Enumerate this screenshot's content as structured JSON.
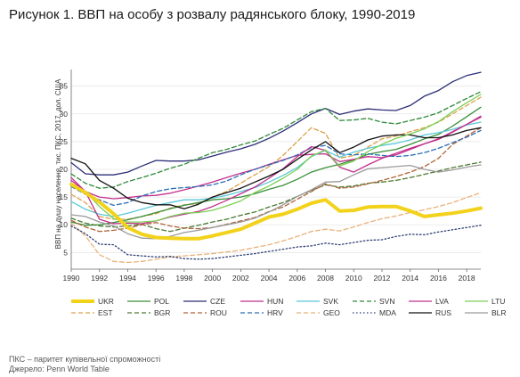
{
  "title": "Рисунок 1. ВВП на особу з розвалу радянського блоку, 1990-2019",
  "notes": [
    "ПКС – паритет купівельної спроможності",
    "Джерело: Penn World Table"
  ],
  "chart_data": {
    "type": "line",
    "title": "Рисунок 1. ВВП на особу з розвалу радянського блоку, 1990-2019",
    "xlabel": "",
    "ylabel": "ВВП на душу населення, тис. ПКС, 2017, дол. США",
    "xlim": [
      1990,
      2019
    ],
    "ylim": [
      2,
      38
    ],
    "xticks": [
      1990,
      1992,
      1994,
      1996,
      1998,
      2000,
      2002,
      2004,
      2006,
      2008,
      2010,
      2012,
      2014,
      2016,
      2018
    ],
    "yticks": [
      5,
      10,
      15,
      20,
      25,
      30,
      35
    ],
    "grid": "horizontal",
    "legend_position": "bottom",
    "x": [
      1990,
      1991,
      1992,
      1993,
      1994,
      1995,
      1996,
      1997,
      1998,
      1999,
      2000,
      2001,
      2002,
      2003,
      2004,
      2005,
      2006,
      2007,
      2008,
      2009,
      2010,
      2011,
      2012,
      2013,
      2014,
      2015,
      2016,
      2017,
      2018,
      2019
    ],
    "series": [
      {
        "name": "UKR",
        "color": "#f2d21b",
        "dash": "solid",
        "width": 4,
        "values": [
          17.3,
          15.8,
          14.1,
          12.0,
          9.5,
          8.3,
          7.7,
          7.6,
          7.5,
          7.5,
          8.0,
          8.6,
          9.2,
          10.3,
          11.4,
          11.9,
          12.8,
          13.9,
          14.5,
          12.5,
          12.6,
          13.2,
          13.3,
          13.3,
          12.5,
          11.5,
          11.8,
          12.1,
          12.5,
          13.0
        ]
      },
      {
        "name": "EST",
        "color": "#d9a24a",
        "dash": "dash",
        "width": 1.3,
        "values": [
          15.5,
          14.0,
          11.5,
          11.0,
          11.0,
          11.5,
          12.0,
          13.0,
          13.6,
          13.8,
          15.0,
          16.0,
          17.5,
          19.0,
          20.5,
          22.5,
          25.0,
          27.5,
          26.5,
          22.0,
          22.5,
          24.0,
          25.5,
          26.0,
          26.8,
          27.5,
          28.5,
          30.0,
          31.5,
          33.0
        ]
      },
      {
        "name": "POL",
        "color": "#3a8f3a",
        "dash": "solid",
        "width": 1.3,
        "values": [
          10.5,
          9.9,
          10.0,
          10.4,
          10.9,
          11.5,
          12.2,
          12.9,
          13.5,
          14.0,
          14.5,
          14.7,
          15.0,
          15.6,
          16.4,
          17.1,
          18.2,
          19.5,
          20.3,
          20.9,
          21.7,
          22.7,
          23.2,
          23.6,
          24.5,
          25.5,
          26.3,
          27.8,
          29.5,
          31.2
        ]
      },
      {
        "name": "BGR",
        "color": "#4c7a32",
        "dash": "dash",
        "width": 1.3,
        "values": [
          11.2,
          10.3,
          9.8,
          9.6,
          9.8,
          10.1,
          9.3,
          8.8,
          9.4,
          9.9,
          10.5,
          11.0,
          11.7,
          12.3,
          13.2,
          14.0,
          15.1,
          16.2,
          17.2,
          16.8,
          17.0,
          17.5,
          17.7,
          18.0,
          18.5,
          19.1,
          19.7,
          20.3,
          20.8,
          21.3
        ]
      },
      {
        "name": "CZE",
        "color": "#2c2e78",
        "dash": "solid",
        "width": 1.3,
        "values": [
          21.2,
          19.2,
          19.0,
          19.0,
          19.5,
          20.6,
          21.6,
          21.5,
          21.5,
          21.7,
          22.4,
          23.1,
          23.7,
          24.5,
          25.6,
          26.9,
          28.4,
          30.0,
          31.0,
          29.9,
          30.5,
          30.9,
          30.7,
          30.6,
          31.5,
          33.2,
          34.2,
          35.8,
          36.9,
          37.5
        ]
      },
      {
        "name": "ROU",
        "color": "#b0643a",
        "dash": "dash",
        "width": 1.3,
        "values": [
          10.8,
          9.6,
          8.8,
          9.0,
          9.4,
          10.0,
          10.4,
          9.8,
          9.4,
          9.3,
          9.5,
          10.1,
          10.7,
          11.3,
          12.4,
          13.2,
          14.6,
          16.0,
          17.4,
          16.6,
          16.8,
          17.4,
          18.0,
          18.7,
          19.5,
          20.5,
          22.0,
          24.5,
          26.0,
          27.5
        ]
      },
      {
        "name": "HUN",
        "color": "#c2308e",
        "dash": "solid",
        "width": 1.3,
        "values": [
          18.0,
          16.0,
          15.0,
          14.7,
          14.9,
          15.2,
          15.3,
          15.7,
          16.3,
          17.0,
          17.7,
          18.5,
          19.3,
          20.0,
          20.9,
          21.7,
          22.5,
          22.7,
          22.8,
          21.4,
          21.8,
          22.3,
          22.1,
          22.6,
          23.6,
          24.6,
          25.4,
          26.7,
          28.1,
          29.6
        ]
      },
      {
        "name": "HRV",
        "color": "#2a6fb3",
        "dash": "dash",
        "width": 1.3,
        "values": [
          16.9,
          15.5,
          14.5,
          13.5,
          14.0,
          15.2,
          16.0,
          16.5,
          16.7,
          16.9,
          17.2,
          17.9,
          19.0,
          20.0,
          20.8,
          21.6,
          22.6,
          23.9,
          24.3,
          22.8,
          22.6,
          22.8,
          22.5,
          22.3,
          22.5,
          23.0,
          23.8,
          24.8,
          25.8,
          27.0
        ]
      },
      {
        "name": "SVK",
        "color": "#5bc8d9",
        "dash": "solid",
        "width": 1.3,
        "values": [
          14.2,
          12.8,
          11.9,
          11.5,
          12.1,
          12.8,
          13.5,
          14.0,
          14.5,
          14.5,
          14.8,
          15.3,
          16.0,
          16.7,
          17.7,
          18.9,
          20.3,
          22.3,
          23.4,
          22.2,
          23.1,
          23.8,
          24.3,
          24.7,
          25.3,
          26.2,
          26.6,
          27.2,
          28.0,
          28.5
        ]
      },
      {
        "name": "GEO",
        "color": "#e8b27a",
        "dash": "dash",
        "width": 1.3,
        "values": [
          10.3,
          8.0,
          4.6,
          3.4,
          3.2,
          3.4,
          3.8,
          4.2,
          4.4,
          4.6,
          4.8,
          5.1,
          5.4,
          5.9,
          6.4,
          7.1,
          7.9,
          8.8,
          9.2,
          8.9,
          9.6,
          10.4,
          11.1,
          11.6,
          12.2,
          12.7,
          13.3,
          14.0,
          14.9,
          15.8
        ]
      },
      {
        "name": "SVN",
        "color": "#2f8a3a",
        "dash": "dash",
        "width": 1.3,
        "values": [
          19.2,
          17.5,
          16.6,
          16.8,
          17.8,
          18.5,
          19.3,
          20.2,
          20.9,
          22.0,
          23.0,
          23.6,
          24.4,
          25.1,
          26.3,
          27.4,
          28.9,
          30.4,
          31.0,
          28.8,
          28.9,
          29.2,
          28.5,
          28.2,
          28.8,
          29.4,
          30.2,
          31.5,
          32.8,
          34.0
        ]
      },
      {
        "name": "MDA",
        "color": "#2b3d73",
        "dash": "dot",
        "width": 1.3,
        "values": [
          9.8,
          8.4,
          6.5,
          6.4,
          4.6,
          4.4,
          4.2,
          4.3,
          3.9,
          3.8,
          3.9,
          4.2,
          4.5,
          4.8,
          5.2,
          5.6,
          6.0,
          6.2,
          6.7,
          6.4,
          6.8,
          7.2,
          7.3,
          7.9,
          8.3,
          8.2,
          8.7,
          9.1,
          9.5,
          9.9
        ]
      },
      {
        "name": "LVA",
        "color": "#c2308e",
        "dash": "solid",
        "width": 1.3,
        "values": [
          18.5,
          16.0,
          11.0,
          10.2,
          10.3,
          10.2,
          10.7,
          11.4,
          11.9,
          12.4,
          13.3,
          14.4,
          15.6,
          16.8,
          18.4,
          20.1,
          22.3,
          24.1,
          23.4,
          20.4,
          19.5,
          20.8,
          22.0,
          22.9,
          23.8,
          24.6,
          25.5,
          26.8,
          28.1,
          29.4
        ]
      },
      {
        "name": "RUS",
        "color": "#111111",
        "dash": "solid",
        "width": 1.3,
        "values": [
          22.0,
          21.0,
          18.0,
          16.6,
          14.8,
          14.0,
          13.6,
          13.6,
          12.9,
          13.7,
          15.0,
          15.8,
          16.6,
          17.7,
          18.8,
          20.0,
          21.8,
          23.5,
          25.0,
          23.0,
          24.0,
          25.3,
          26.0,
          26.2,
          26.2,
          25.7,
          25.7,
          26.2,
          27.0,
          27.5
        ]
      },
      {
        "name": "LTU",
        "color": "#7ccf54",
        "dash": "solid",
        "width": 1.3,
        "values": [
          17.0,
          16.0,
          13.3,
          11.1,
          10.5,
          10.5,
          10.7,
          11.5,
          12.1,
          12.2,
          12.6,
          13.4,
          14.3,
          15.8,
          17.0,
          18.4,
          20.0,
          22.4,
          23.5,
          20.6,
          21.5,
          23.2,
          24.5,
          25.6,
          26.4,
          27.3,
          28.6,
          30.4,
          32.0,
          33.5
        ]
      },
      {
        "name": "BLR",
        "color": "#9a9a9a",
        "dash": "solid",
        "width": 1.3,
        "values": [
          11.8,
          11.5,
          10.5,
          9.8,
          8.4,
          7.6,
          7.5,
          7.9,
          8.6,
          9.0,
          9.5,
          10.0,
          10.5,
          11.2,
          12.3,
          13.6,
          15.1,
          16.3,
          17.7,
          17.8,
          19.0,
          20.1,
          20.3,
          20.5,
          20.7,
          20.0,
          19.5,
          19.9,
          20.4,
          20.8
        ]
      }
    ]
  }
}
